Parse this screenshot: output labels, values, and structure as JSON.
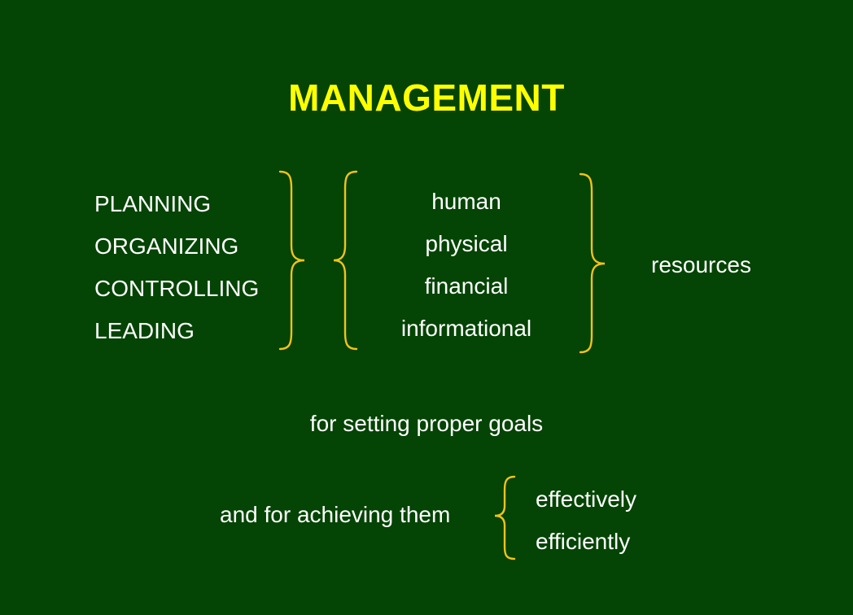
{
  "slide": {
    "title": "MANAGEMENT",
    "functions": [
      {
        "label": "PLANNING"
      },
      {
        "label": "ORGANIZING"
      },
      {
        "label": "CONTROLLING"
      },
      {
        "label": "LEADING"
      }
    ],
    "resource_types": [
      {
        "label": "human"
      },
      {
        "label": "physical"
      },
      {
        "label": "financial"
      },
      {
        "label": "informational"
      }
    ],
    "resources_label": "resources",
    "goals_text": "for setting proper goals",
    "achieve_text": "and for achieving them",
    "manners": [
      {
        "label": "effectively"
      },
      {
        "label": "efficiently"
      }
    ],
    "colors": {
      "background": "#044404",
      "title": "#ffff00",
      "text": "#ffffff",
      "brace": "#f2c21a"
    }
  }
}
